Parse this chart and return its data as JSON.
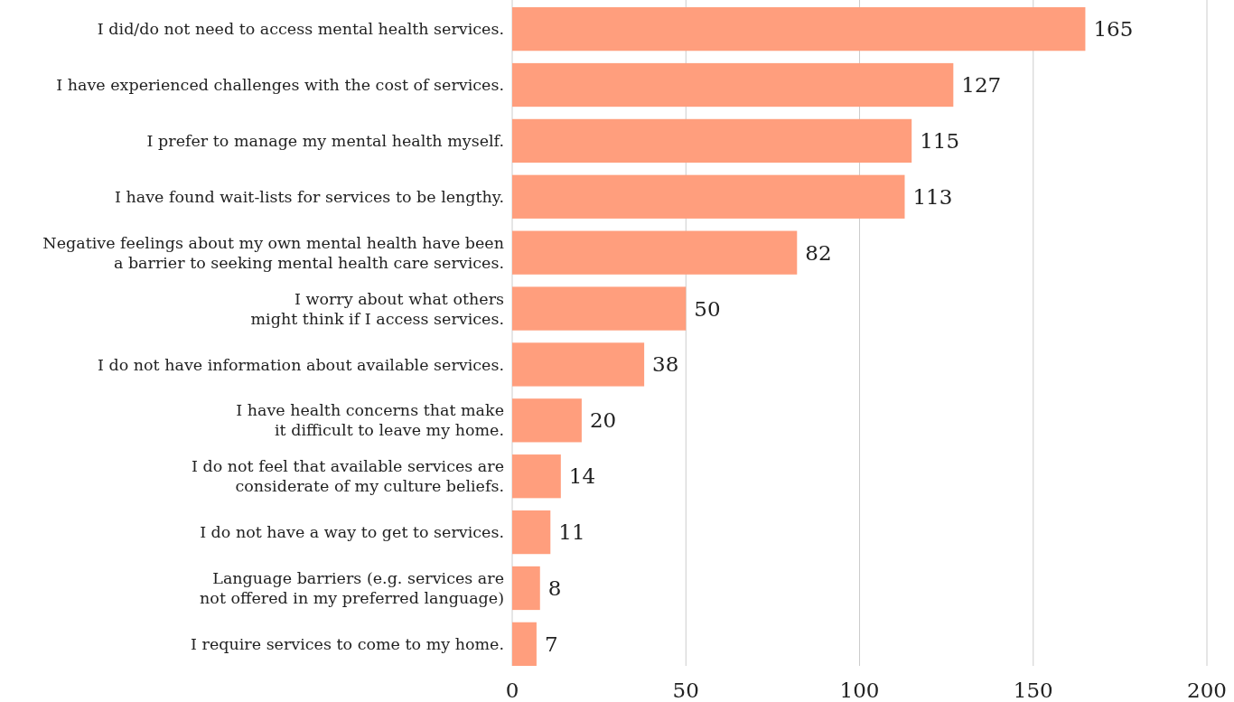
{
  "chart_data": {
    "type": "bar",
    "orientation": "horizontal",
    "categories": [
      "I did/do not need to access mental health services.",
      "I have experienced challenges with the cost of services.",
      "I prefer to manage my mental health myself.",
      "I have found wait-lists for services to be lengthy.",
      "Negative feelings about my own mental health have been\na barrier to seeking mental health care services.",
      "I worry about what others\nmight think if I access services.",
      "I do not have information about available services.",
      "I have health concerns that make\nit difficult to leave my home.",
      "I do not feel that available services are\nconsiderate of my culture beliefs.",
      "I do not have a way to get to services.",
      "Language barriers (e.g. services are\nnot offered in my preferred language)",
      "I require services to come to my home."
    ],
    "values": [
      165,
      127,
      115,
      113,
      82,
      50,
      38,
      20,
      14,
      11,
      8,
      7
    ],
    "color": "#ff9e7d",
    "xlim": [
      0,
      200
    ],
    "xticks": [
      0,
      50,
      100,
      150,
      200
    ],
    "grid": "x",
    "data_labels": true
  }
}
